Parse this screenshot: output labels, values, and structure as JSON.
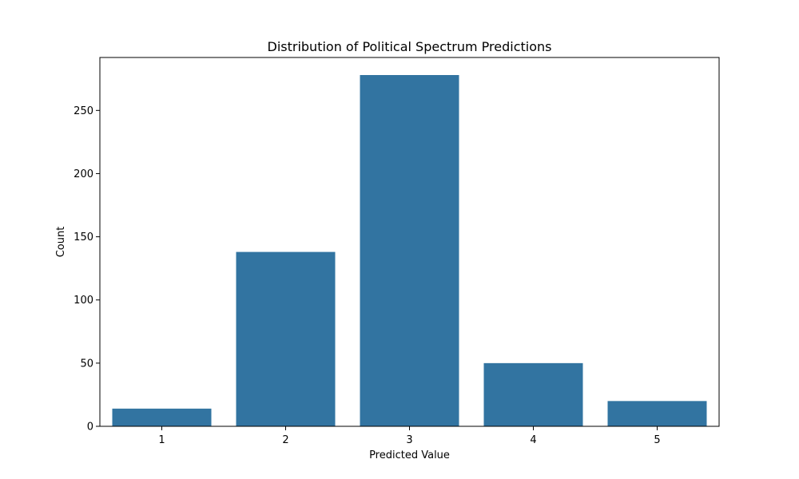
{
  "chart_data": {
    "type": "bar",
    "title": "Distribution of Political Spectrum Predictions",
    "xlabel": "Predicted Value",
    "ylabel": "Count",
    "categories": [
      "1",
      "2",
      "3",
      "4",
      "5"
    ],
    "values": [
      14,
      138,
      278,
      50,
      20
    ],
    "ylim": [
      0,
      291.9
    ],
    "yticks": [
      0,
      50,
      100,
      150,
      200,
      250
    ],
    "grid": false,
    "legend": "none",
    "colors": {
      "bar": "#3274a1",
      "axis": "#000000",
      "background": "#ffffff"
    }
  }
}
